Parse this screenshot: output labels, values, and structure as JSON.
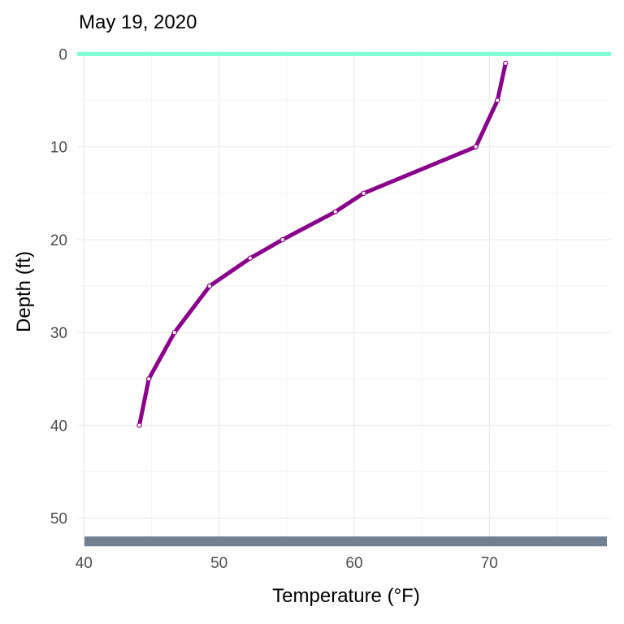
{
  "chart_data": {
    "type": "line",
    "title": "May 19, 2020",
    "xlabel": "Temperature (°F)",
    "ylabel": "Depth (ft)",
    "xlim": [
      39.5,
      79
    ],
    "ylim": [
      53,
      -0.3
    ],
    "y_reversed": true,
    "x_ticks": [
      40,
      50,
      60,
      70
    ],
    "y_ticks": [
      0,
      10,
      20,
      30,
      40,
      50
    ],
    "grid": true,
    "surface_line": {
      "depth": 0,
      "color": "#7fffd4"
    },
    "bottom_band": {
      "depth": 52.5,
      "color": "#708090"
    },
    "series": [
      {
        "color": "#8b008b",
        "points": [
          {
            "x": 71.2,
            "y": 1
          },
          {
            "x": 70.6,
            "y": 5
          },
          {
            "x": 69.0,
            "y": 10
          },
          {
            "x": 60.7,
            "y": 15
          },
          {
            "x": 58.6,
            "y": 17
          },
          {
            "x": 54.7,
            "y": 20
          },
          {
            "x": 52.3,
            "y": 22
          },
          {
            "x": 49.3,
            "y": 25
          },
          {
            "x": 46.7,
            "y": 30
          },
          {
            "x": 44.8,
            "y": 35
          },
          {
            "x": 44.1,
            "y": 40
          }
        ]
      }
    ]
  }
}
